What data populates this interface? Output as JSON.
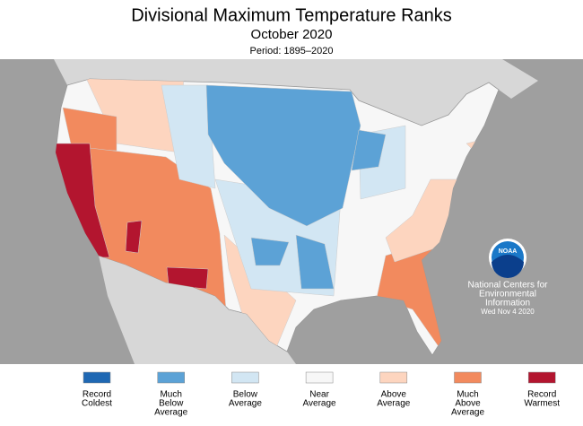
{
  "header": {
    "title": "Divisional Maximum Temperature Ranks",
    "subtitle": "October 2020",
    "period": "Period: 1895–2020"
  },
  "legend": [
    {
      "label": [
        "Record",
        "Coldest"
      ],
      "color": "#1f68b3"
    },
    {
      "label": [
        "Much",
        "Below",
        "Average"
      ],
      "color": "#5ca2d6"
    },
    {
      "label": [
        "Below",
        "Average"
      ],
      "color": "#d2e6f3"
    },
    {
      "label": [
        "Near",
        "Average"
      ],
      "color": "#f7f7f7"
    },
    {
      "label": [
        "Above",
        "Average"
      ],
      "color": "#fdd5bf"
    },
    {
      "label": [
        "Much",
        "Above",
        "Average"
      ],
      "color": "#f28a5e"
    },
    {
      "label": [
        "Record",
        "Warmest"
      ],
      "color": "#b3152f"
    }
  ],
  "credit": {
    "lines": [
      "National Centers for",
      "Environmental",
      "Information"
    ],
    "date": "Wed Nov  4 2020",
    "logo": "NOAA"
  }
}
